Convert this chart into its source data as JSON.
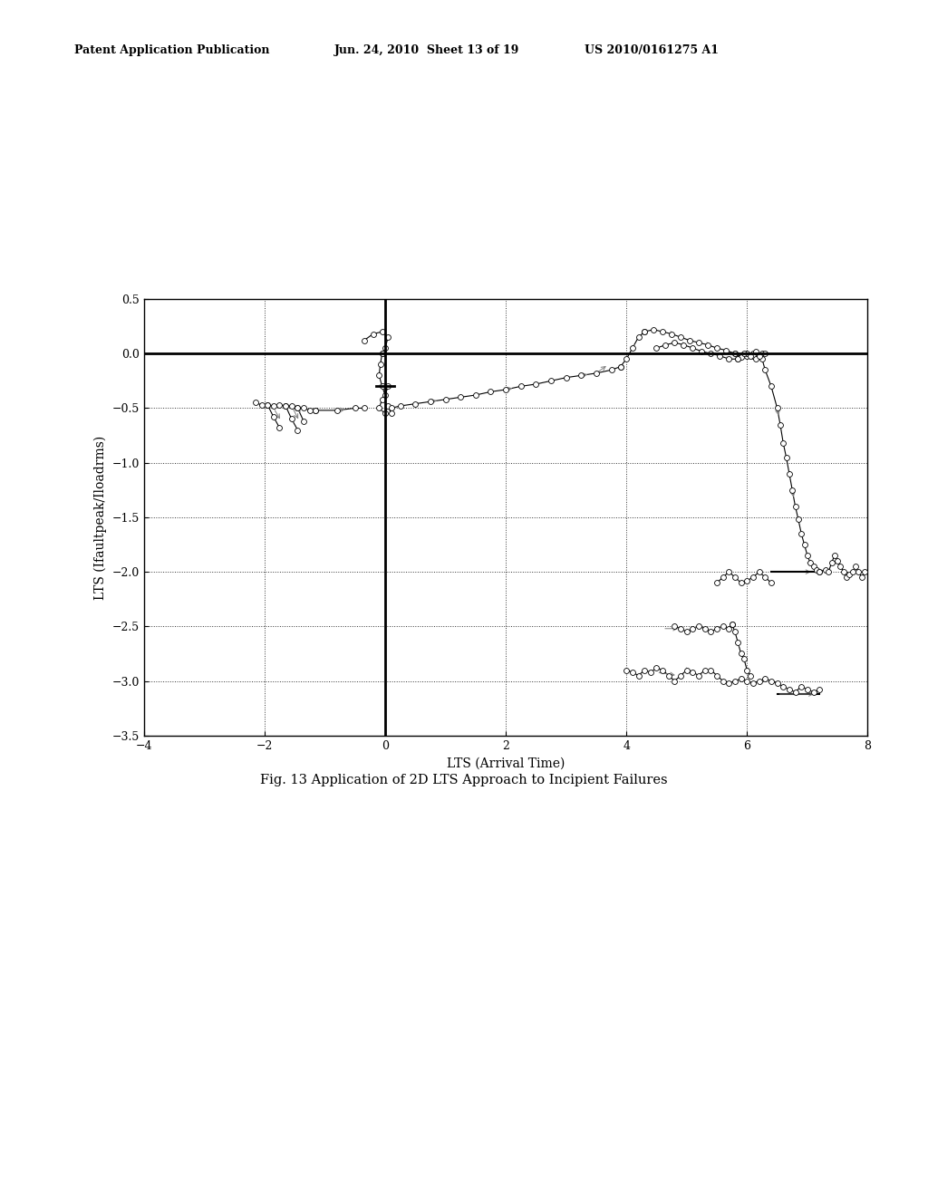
{
  "title": "",
  "xlabel": "LTS (Arrival Time)",
  "ylabel": "LTS (Ifaultpeak/Iloadrms)",
  "xlim": [
    -4,
    8
  ],
  "ylim": [
    -3.5,
    0.5
  ],
  "xticks": [
    -4,
    -2,
    0,
    2,
    4,
    6,
    8
  ],
  "yticks": [
    0.5,
    0,
    -0.5,
    -1.0,
    -1.5,
    -2.0,
    -2.5,
    -3.0,
    -3.5
  ],
  "hline_y": 0,
  "vline_x": 0,
  "background_color": "#ffffff",
  "line_color": "#000000",
  "figure_caption": "Fig. 13 Application of 2D LTS Approach to Incipient Failures",
  "header_left": "Patent Application Publication",
  "header_center": "Jun. 24, 2010  Sheet 13 of 19",
  "header_right": "US 2010/0161275 A1"
}
